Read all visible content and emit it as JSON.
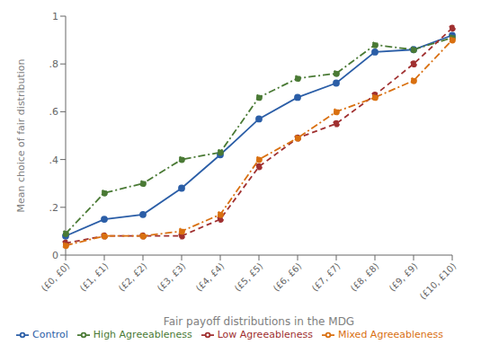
{
  "chart_data": {
    "type": "line",
    "xlabel": "Fair payoff distributions in the MDG",
    "ylabel": "Mean choice of fair distribution",
    "categories": [
      "(£0, £0)",
      "(£1, £1)",
      "(£2, £2)",
      "(£3, £3)",
      "(£4, £4)",
      "(£5, £5)",
      "(£6, £6)",
      "(£7, £7)",
      "(£8, £8)",
      "(£9, £9)",
      "(£10, £10)"
    ],
    "series": [
      {
        "name": "Control",
        "color": "#2b5ea7",
        "line_style": "solid",
        "marker": "circle",
        "values": [
          0.08,
          0.15,
          0.17,
          0.28,
          0.42,
          0.57,
          0.66,
          0.72,
          0.85,
          0.86,
          0.92
        ]
      },
      {
        "name": "High Agreeableness",
        "color": "#4a7a35",
        "line_style": "dashdot",
        "marker": "circle",
        "values": [
          0.09,
          0.26,
          0.3,
          0.4,
          0.43,
          0.66,
          0.74,
          0.76,
          0.88,
          0.86,
          0.91
        ]
      },
      {
        "name": "Low Agreeableness",
        "color": "#a03030",
        "line_style": "dashed",
        "marker": "circle",
        "values": [
          0.05,
          0.08,
          0.08,
          0.08,
          0.15,
          0.37,
          0.49,
          0.55,
          0.67,
          0.8,
          0.95
        ]
      },
      {
        "name": "Mixed Agreeableness",
        "color": "#d97010",
        "line_style": "dashdot",
        "marker": "circle",
        "values": [
          0.04,
          0.08,
          0.08,
          0.1,
          0.17,
          0.4,
          0.49,
          0.6,
          0.66,
          0.73,
          0.9
        ]
      }
    ],
    "ylim": [
      0,
      1.0
    ],
    "yticks": [
      0,
      {
        "value": 0.2,
        "label": ".2"
      },
      {
        "value": 0.4,
        "label": ".4"
      },
      {
        "value": 0.6,
        "label": ".6"
      },
      {
        "value": 0.8,
        "label": ".8"
      },
      1
    ],
    "grid": false
  }
}
